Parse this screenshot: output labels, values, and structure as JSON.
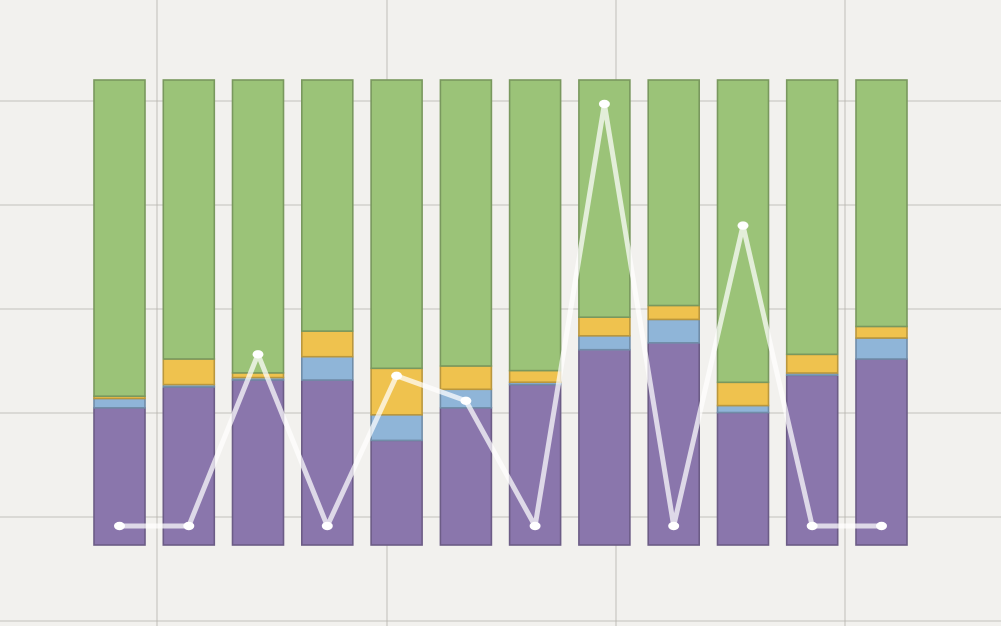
{
  "chart_data": {
    "type": "bar",
    "stacked": true,
    "normalized": true,
    "categories": [
      "",
      "",
      "",
      "",
      "",
      "",
      "",
      "",
      "",
      "",
      "",
      ""
    ],
    "ylim": [
      0,
      1
    ],
    "grid": true,
    "legend": "none",
    "series": [
      {
        "color": "#8a76ac",
        "values": [
          0.295,
          0.34,
          0.355,
          0.355,
          0.225,
          0.295,
          0.345,
          0.42,
          0.435,
          0.285,
          0.365,
          0.4
        ]
      },
      {
        "color": "#8fb5d8",
        "values": [
          0.02,
          0.005,
          0.005,
          0.05,
          0.055,
          0.04,
          0.005,
          0.03,
          0.05,
          0.015,
          0.005,
          0.045
        ]
      },
      {
        "color": "#efc24e",
        "values": [
          0.005,
          0.055,
          0.01,
          0.055,
          0.1,
          0.05,
          0.025,
          0.04,
          0.03,
          0.05,
          0.04,
          0.025
        ]
      },
      {
        "color": "#9bc378",
        "values": [
          0.68,
          0.6,
          0.63,
          0.54,
          0.62,
          0.615,
          0.625,
          0.51,
          0.485,
          0.65,
          0.59,
          0.53
        ]
      }
    ],
    "overlay_line": {
      "type": "line",
      "color": "#ffffff",
      "values": [
        0.0,
        0.0,
        0.48,
        0.0,
        0.42,
        0.35,
        0.0,
        1.18,
        0.0,
        0.84,
        0.0,
        0.0
      ],
      "ylim": [
        0,
        1.3
      ]
    }
  }
}
